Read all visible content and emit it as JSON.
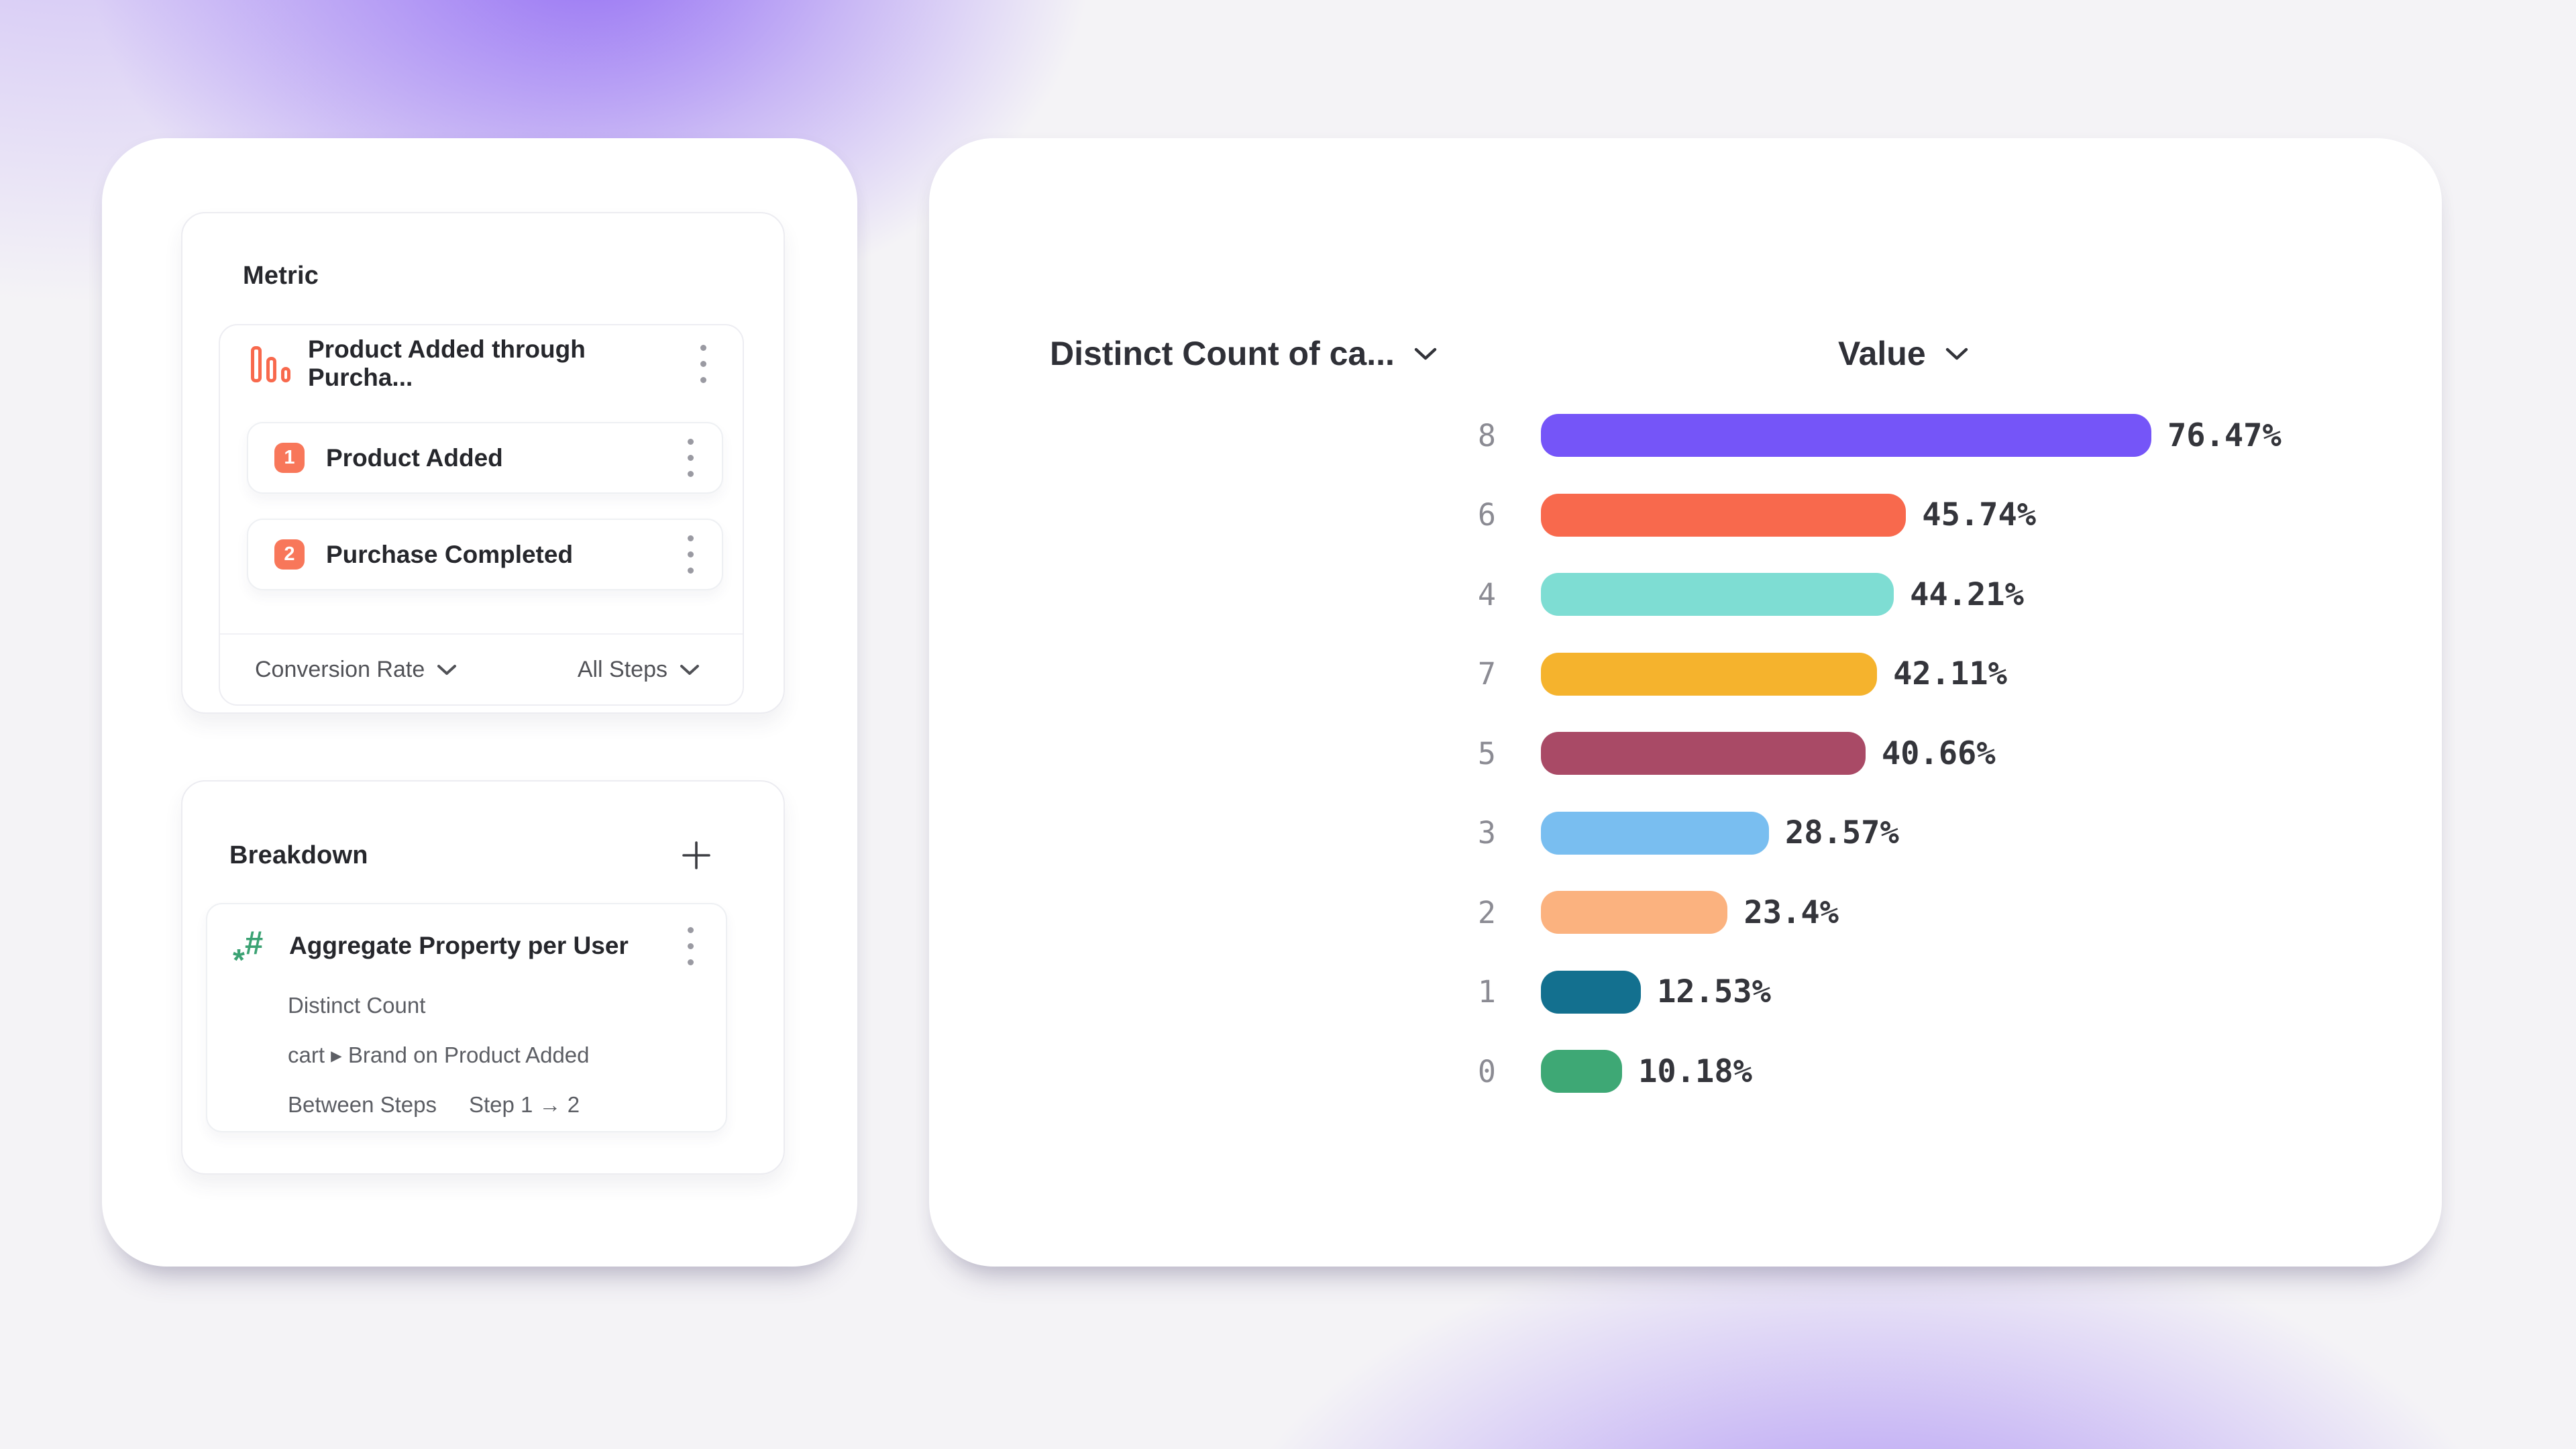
{
  "palette": {
    "background_base": "#f4f3f6",
    "glow_purple": "#926cf4",
    "accent_coral": "#f8775a",
    "accent_green": "#3ba273"
  },
  "metric_panel": {
    "title": "Metric",
    "funnel": {
      "icon": "funnel-bars-icon",
      "label": "Product Added through Purcha..."
    },
    "steps": [
      {
        "index": "1",
        "label": "Product Added"
      },
      {
        "index": "2",
        "label": "Purchase Completed"
      }
    ],
    "footer": {
      "measure_dropdown": "Conversion Rate",
      "steps_dropdown": "All Steps"
    }
  },
  "breakdown_panel": {
    "title": "Breakdown",
    "add_button": "plus-icon",
    "property": {
      "icon": "hash-aggregate-icon",
      "title": "Aggregate Property per User",
      "aggregation": "Distinct Count",
      "property_path": "cart ▸ Brand on Product Added",
      "between_label": "Between Steps",
      "between_value": "Step 1 → 2"
    }
  },
  "chart": {
    "category_header": "Distinct Count of ca...",
    "value_header": "Value"
  },
  "chart_data": {
    "type": "bar",
    "orientation": "horizontal",
    "title": "",
    "xlabel": "Value",
    "ylabel": "Distinct Count of ca...",
    "categories": [
      "8",
      "6",
      "4",
      "7",
      "5",
      "3",
      "2",
      "1",
      "0"
    ],
    "values": [
      76.47,
      45.74,
      44.21,
      42.11,
      40.66,
      28.57,
      23.4,
      12.53,
      10.18
    ],
    "value_labels": [
      "76.47%",
      "45.74%",
      "44.21%",
      "42.11%",
      "40.66%",
      "28.57%",
      "23.4%",
      "12.53%",
      "10.18%"
    ],
    "bar_colors": [
      "#7555f8",
      "#f8694d",
      "#7eddd3",
      "#f5b32d",
      "#a94a66",
      "#79bef0",
      "#fbb27f",
      "#13708f",
      "#3ea875"
    ],
    "xlim": [
      0,
      100
    ],
    "value_unit": "%",
    "legend": "none",
    "grid": "off"
  }
}
